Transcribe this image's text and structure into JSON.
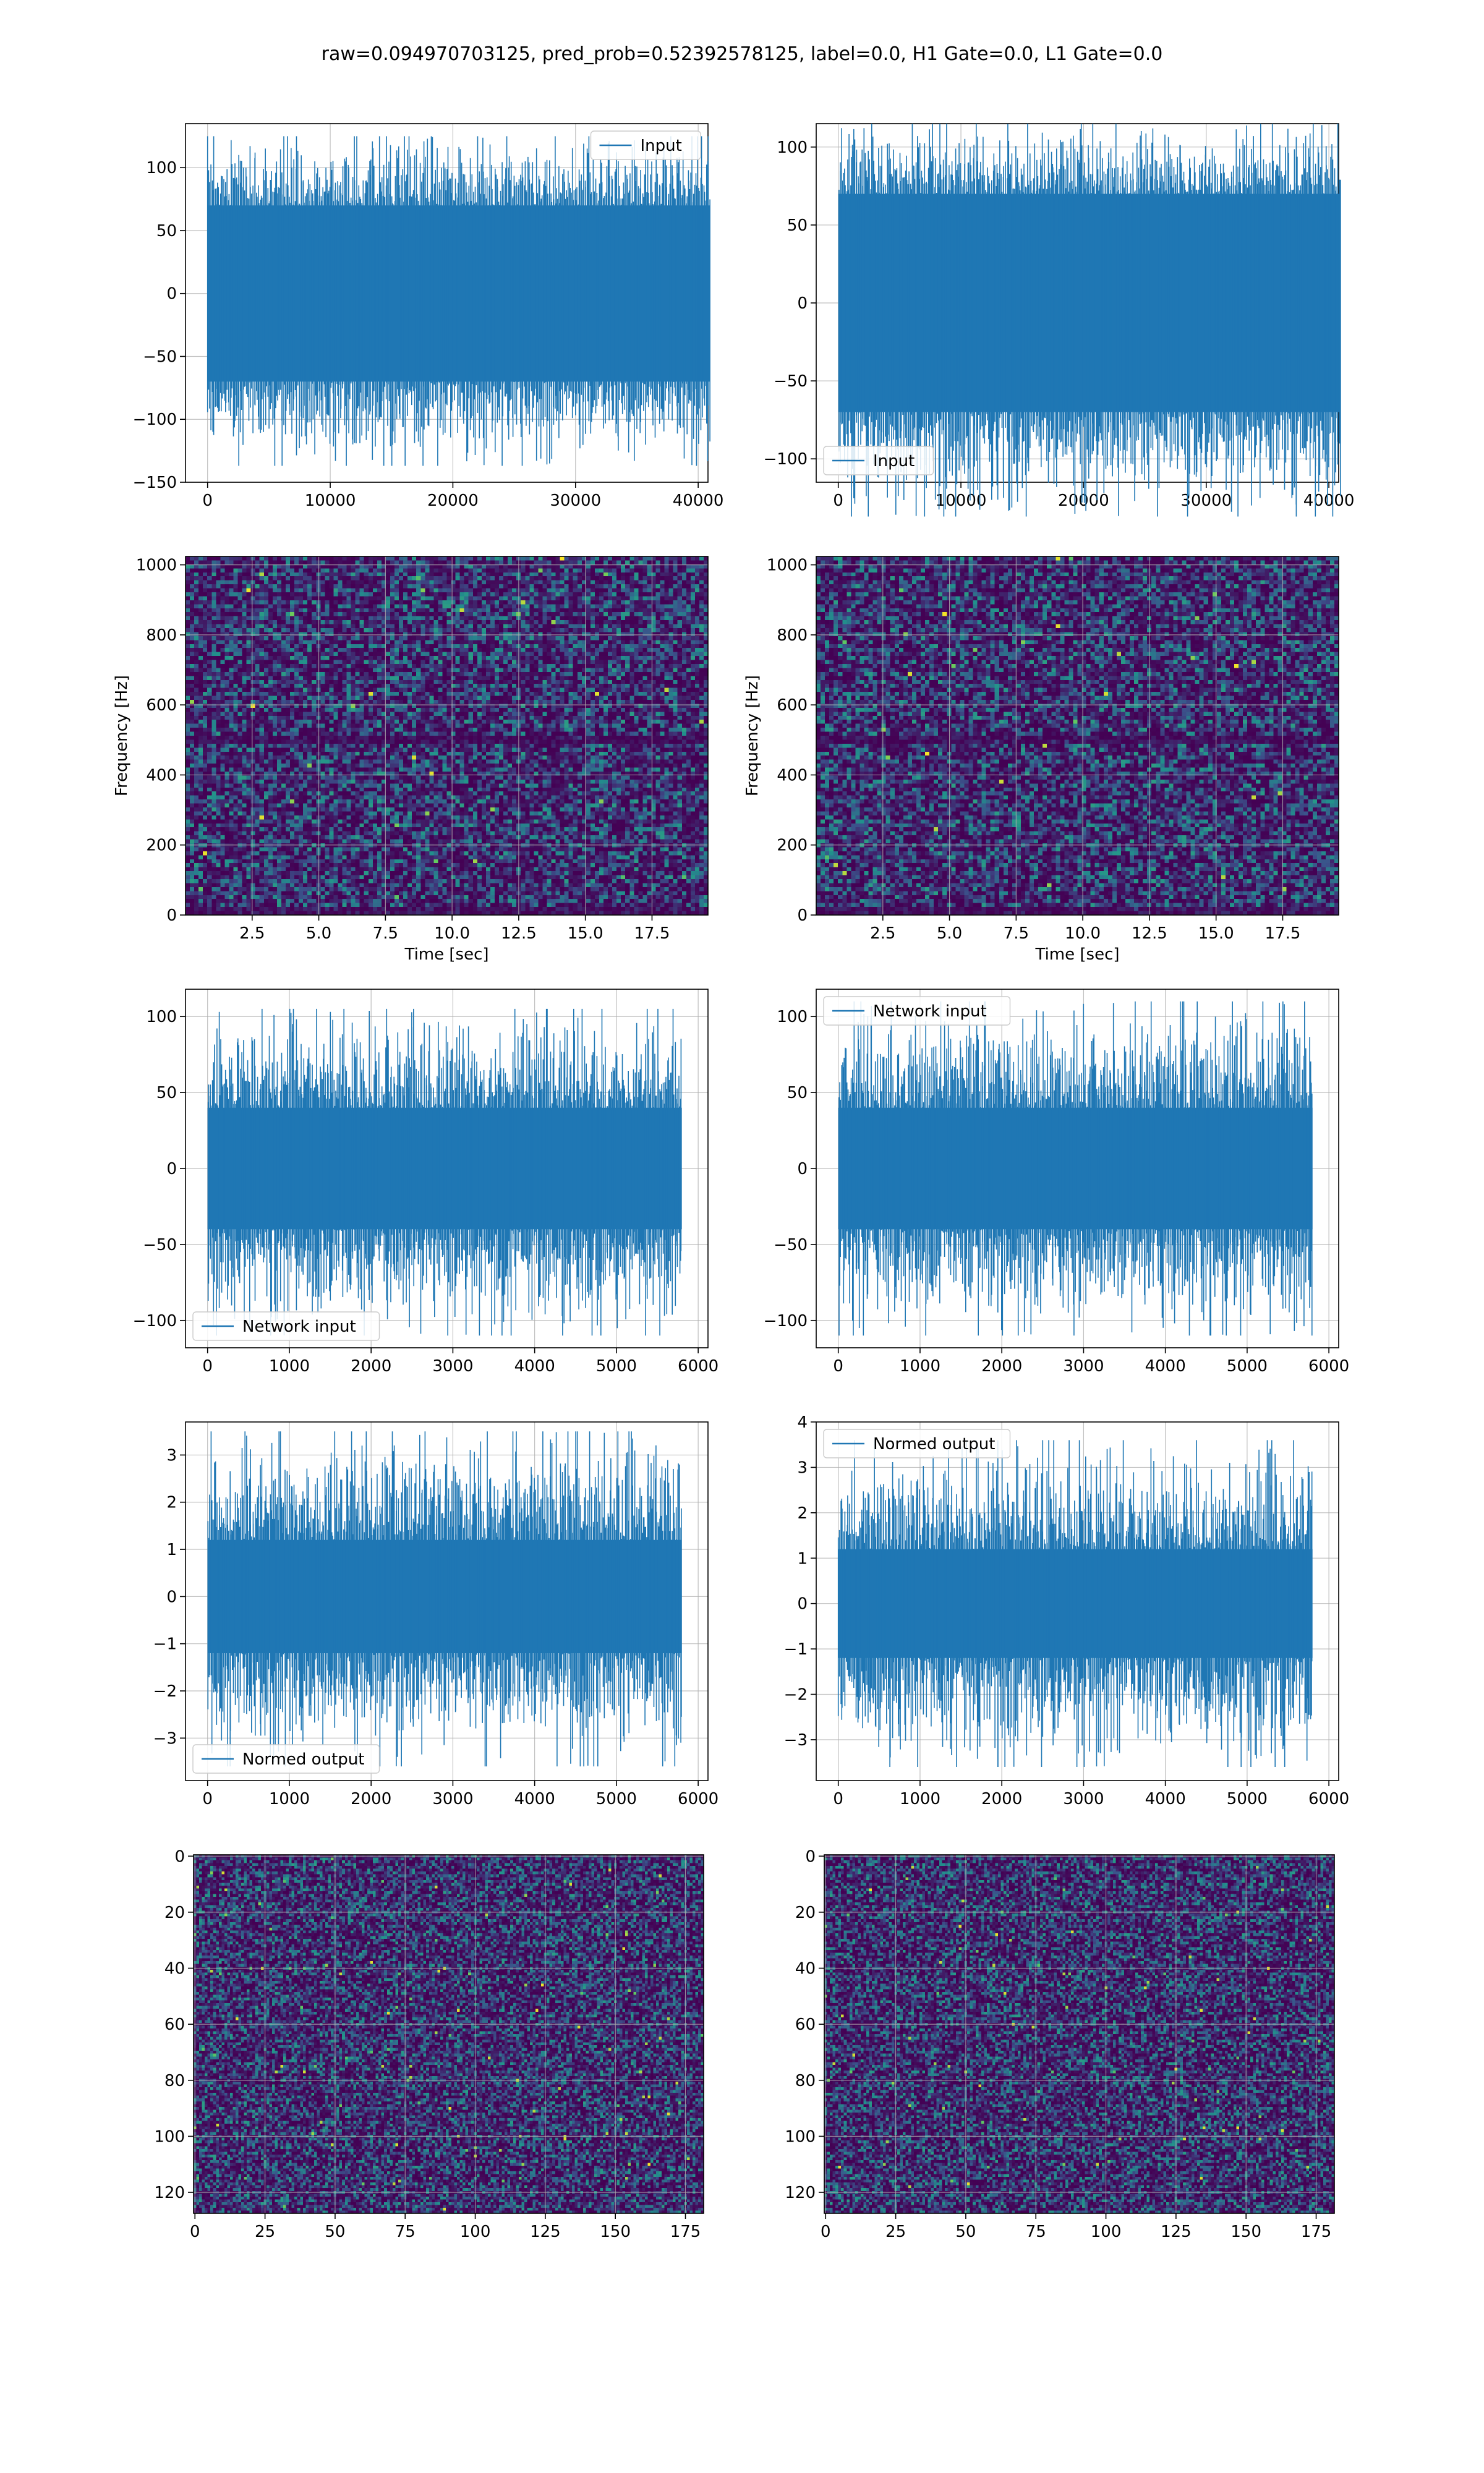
{
  "figure": {
    "title": "raw=0.094970703125, pred_prob=0.52392578125, label=0.0, H1 Gate=0.0, L1 Gate=0.0",
    "colors": {
      "line": "#1f77b4",
      "grid": "#b0b0b0",
      "axes": "#000000",
      "heat_low": "#440154",
      "heat_mid": "#21918c",
      "heat_high": "#fde725"
    }
  },
  "chart_data": [
    {
      "id": "input-left",
      "type": "line",
      "series": [
        {
          "name": "Input"
        }
      ],
      "x_range": [
        0,
        40960
      ],
      "ylim": [
        -150,
        135
      ],
      "xticks": [
        0,
        10000,
        20000,
        30000,
        40000
      ],
      "yticks": [
        -150,
        -100,
        -50,
        0,
        50,
        100
      ],
      "xtick_labels": [
        "0",
        "10000",
        "20000",
        "30000",
        "40000"
      ],
      "ytick_labels": [
        "−150",
        "−100",
        "−50",
        "0",
        "50",
        "100"
      ],
      "legend": "top-right",
      "grid": true,
      "envelope": {
        "core": 70,
        "peak_max": 125,
        "peak_min": -137
      }
    },
    {
      "id": "input-right",
      "type": "line",
      "series": [
        {
          "name": "Input"
        }
      ],
      "x_range": [
        0,
        40960
      ],
      "ylim": [
        -115,
        115
      ],
      "xticks": [
        0,
        10000,
        20000,
        30000,
        40000
      ],
      "yticks": [
        -100,
        -50,
        0,
        50,
        100
      ],
      "xtick_labels": [
        "0",
        "10000",
        "20000",
        "30000",
        "40000"
      ],
      "ytick_labels": [
        "−100",
        "−50",
        "0",
        "50",
        "100"
      ],
      "legend": "bottom-left",
      "grid": true,
      "envelope": {
        "core": 70,
        "peak_max": 115,
        "peak_min": -137
      }
    },
    {
      "id": "spectrogram-left",
      "type": "heatmap",
      "xlabel": "Time [sec]",
      "ylabel": "Frequency [Hz]",
      "xlim": [
        0,
        19.6
      ],
      "ylim": [
        0,
        1024
      ],
      "xticks": [
        2.5,
        5.0,
        7.5,
        10.0,
        12.5,
        15.0,
        17.5
      ],
      "yticks": [
        0,
        200,
        400,
        600,
        800,
        1000
      ],
      "xtick_labels": [
        "2.5",
        "5.0",
        "7.5",
        "10.0",
        "12.5",
        "15.0",
        "17.5"
      ],
      "ytick_labels": [
        "0",
        "200",
        "400",
        "600",
        "800",
        "1000"
      ],
      "grid": true,
      "notch_hz": 500
    },
    {
      "id": "spectrogram-right",
      "type": "heatmap",
      "xlabel": "Time [sec]",
      "ylabel": "Frequency [Hz]",
      "xlim": [
        0,
        19.6
      ],
      "ylim": [
        0,
        1024
      ],
      "xticks": [
        2.5,
        5.0,
        7.5,
        10.0,
        12.5,
        15.0,
        17.5
      ],
      "yticks": [
        0,
        200,
        400,
        600,
        800,
        1000
      ],
      "xtick_labels": [
        "2.5",
        "5.0",
        "7.5",
        "10.0",
        "12.5",
        "15.0",
        "17.5"
      ],
      "ytick_labels": [
        "0",
        "200",
        "400",
        "600",
        "800",
        "1000"
      ],
      "grid": true,
      "notch_hz": 500
    },
    {
      "id": "network-input-left",
      "type": "line",
      "series": [
        {
          "name": "Network input"
        }
      ],
      "x_range": [
        0,
        5800
      ],
      "ylim": [
        -118,
        118
      ],
      "xticks": [
        0,
        1000,
        2000,
        3000,
        4000,
        5000,
        6000
      ],
      "yticks": [
        -100,
        -50,
        0,
        50,
        100
      ],
      "xtick_labels": [
        "0",
        "1000",
        "2000",
        "3000",
        "4000",
        "5000",
        "6000"
      ],
      "ytick_labels": [
        "−100",
        "−50",
        "0",
        "50",
        "100"
      ],
      "legend": "bottom-left",
      "grid": true,
      "envelope": {
        "core": 40,
        "peak_max": 105,
        "peak_min": -110
      }
    },
    {
      "id": "network-input-right",
      "type": "line",
      "series": [
        {
          "name": "Network input"
        }
      ],
      "x_range": [
        0,
        5800
      ],
      "ylim": [
        -118,
        118
      ],
      "xticks": [
        0,
        1000,
        2000,
        3000,
        4000,
        5000,
        6000
      ],
      "yticks": [
        -100,
        -50,
        0,
        50,
        100
      ],
      "xtick_labels": [
        "0",
        "1000",
        "2000",
        "3000",
        "4000",
        "5000",
        "6000"
      ],
      "ytick_labels": [
        "−100",
        "−50",
        "0",
        "50",
        "100"
      ],
      "legend": "top-left",
      "grid": true,
      "envelope": {
        "core": 40,
        "peak_max": 110,
        "peak_min": -110
      }
    },
    {
      "id": "normed-output-left",
      "type": "line",
      "series": [
        {
          "name": "Normed output"
        }
      ],
      "x_range": [
        0,
        5800
      ],
      "ylim": [
        -3.9,
        3.7
      ],
      "xticks": [
        0,
        1000,
        2000,
        3000,
        4000,
        5000,
        6000
      ],
      "yticks": [
        -3,
        -2,
        -1,
        0,
        1,
        2,
        3
      ],
      "xtick_labels": [
        "0",
        "1000",
        "2000",
        "3000",
        "4000",
        "5000",
        "6000"
      ],
      "ytick_labels": [
        "−3",
        "−2",
        "−1",
        "0",
        "1",
        "2",
        "3"
      ],
      "legend": "bottom-left",
      "grid": true,
      "envelope": {
        "core": 1.2,
        "peak_max": 3.5,
        "peak_min": -3.6
      }
    },
    {
      "id": "normed-output-right",
      "type": "line",
      "series": [
        {
          "name": "Normed output"
        }
      ],
      "x_range": [
        0,
        5800
      ],
      "ylim": [
        -3.9,
        4.0
      ],
      "xticks": [
        0,
        1000,
        2000,
        3000,
        4000,
        5000,
        6000
      ],
      "yticks": [
        -3,
        -2,
        -1,
        0,
        1,
        2,
        3,
        4
      ],
      "xtick_labels": [
        "0",
        "1000",
        "2000",
        "3000",
        "4000",
        "5000",
        "6000"
      ],
      "ytick_labels": [
        "−3",
        "−2",
        "−1",
        "0",
        "1",
        "2",
        "3",
        "4"
      ],
      "legend": "top-left",
      "grid": true,
      "envelope": {
        "core": 1.2,
        "peak_max": 3.6,
        "peak_min": -3.6
      }
    },
    {
      "id": "matrix-left",
      "type": "heatmap",
      "xlim": [
        -0.5,
        181.5
      ],
      "ylim": [
        127.5,
        -0.5
      ],
      "xticks": [
        0,
        25,
        50,
        75,
        100,
        125,
        150,
        175
      ],
      "yticks": [
        0,
        20,
        40,
        60,
        80,
        100,
        120
      ],
      "xtick_labels": [
        "0",
        "25",
        "50",
        "75",
        "100",
        "125",
        "150",
        "175"
      ],
      "ytick_labels": [
        "0",
        "20",
        "40",
        "60",
        "80",
        "100",
        "120"
      ],
      "grid": true,
      "cols": 182,
      "rows": 128
    },
    {
      "id": "matrix-right",
      "type": "heatmap",
      "xlim": [
        -0.5,
        181.5
      ],
      "ylim": [
        127.5,
        -0.5
      ],
      "xticks": [
        0,
        25,
        50,
        75,
        100,
        125,
        150,
        175
      ],
      "yticks": [
        0,
        20,
        40,
        60,
        80,
        100,
        120
      ],
      "xtick_labels": [
        "0",
        "25",
        "50",
        "75",
        "100",
        "125",
        "150",
        "175"
      ],
      "ytick_labels": [
        "0",
        "20",
        "40",
        "60",
        "80",
        "100",
        "120"
      ],
      "grid": true,
      "cols": 182,
      "rows": 128
    }
  ]
}
